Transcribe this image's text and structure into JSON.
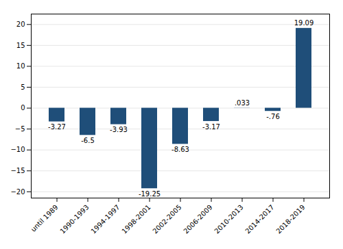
{
  "chart_data": {
    "type": "bar",
    "categories": [
      "until 1989",
      "1990-1993",
      "1994-1997",
      "1998-2001",
      "2002-2005",
      "2006-2009",
      "2010-2013",
      "2014-2017",
      "2018-2019"
    ],
    "values": [
      -3.27,
      -6.5,
      -3.93,
      -19.25,
      -8.63,
      -3.17,
      0.033,
      -0.76,
      19.09
    ],
    "value_labels": [
      "-3.27",
      "-6.5",
      "-3.93",
      "-19.25",
      "-8.63",
      "-3.17",
      ".033",
      "-.76",
      "19.09"
    ],
    "data_labels": true,
    "color": "#1f4e79",
    "ylim": [
      -21.5,
      22.5
    ],
    "yticks": [
      -20,
      -15,
      -10,
      -5,
      0,
      5,
      10,
      15,
      20
    ],
    "grid": true
  }
}
